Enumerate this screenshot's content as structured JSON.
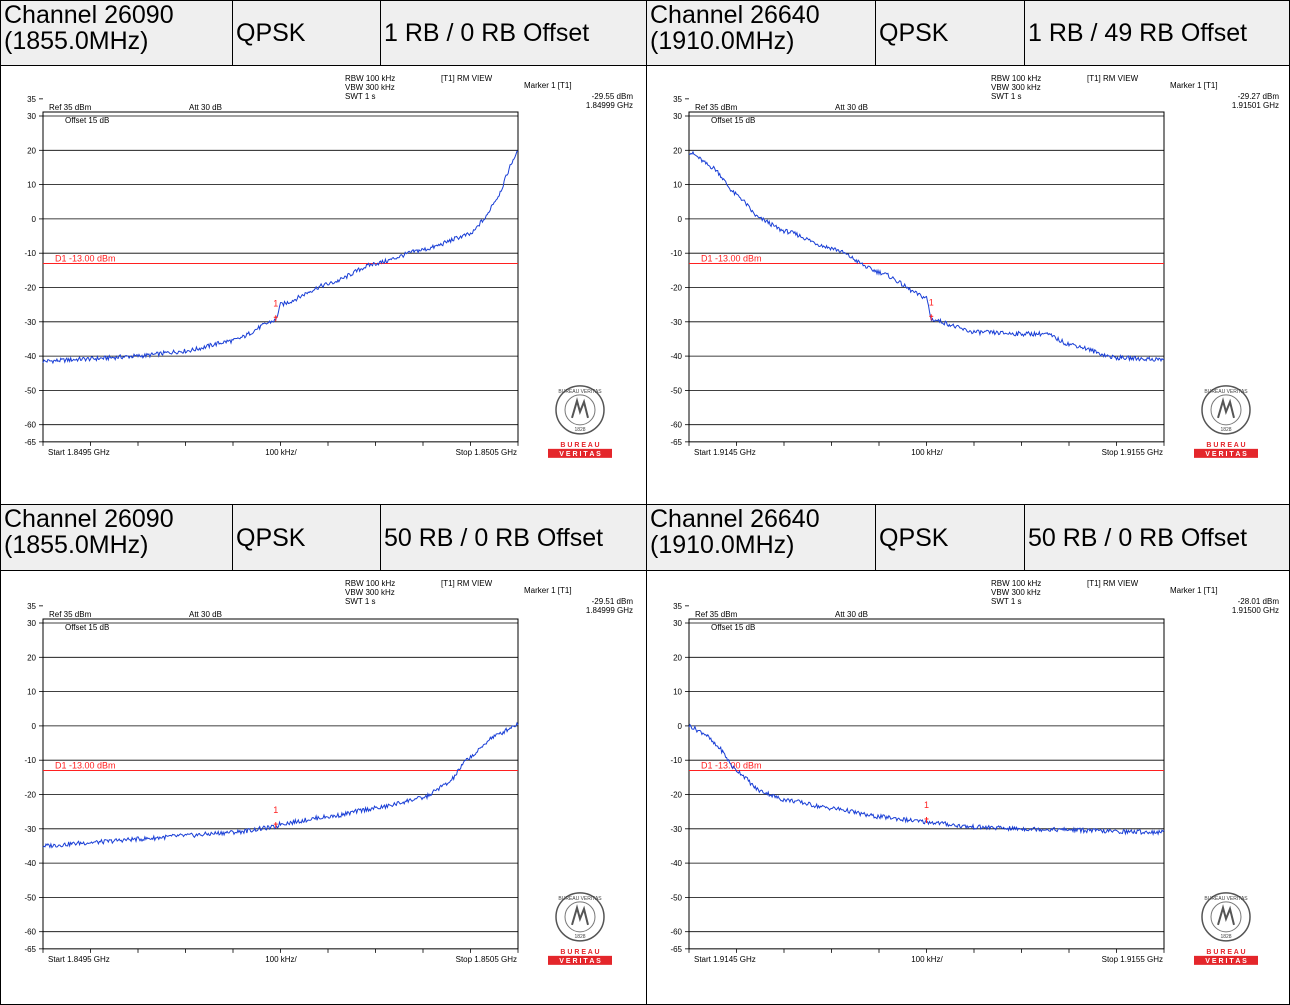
{
  "colors": {
    "trace": "#1a3fd6",
    "limit": "#ff2020",
    "marker": "#ff2020",
    "logo_red": "#e4262b",
    "header_bg": "#efefef"
  },
  "instrument": {
    "rbw": "RBW 100 kHz",
    "vbw": "VBW 300 kHz",
    "swt": "SWT 1 s",
    "view": "[T1] RM VIEW",
    "ref": "Ref 35 dBm",
    "att": "Att 30 dB",
    "offset": "Offset 15 dB",
    "div": "100 kHz/",
    "limit_label": "D1 -13.00 dBm",
    "marker_title": "Marker 1 [T1]",
    "marker_id": "1",
    "logo_top": "BUREAU VERITAS",
    "logo_year": "1828",
    "logo_bottom1": "B U R E A U",
    "logo_bottom2": "V E R I T A S"
  },
  "rows": [
    {
      "headers": [
        {
          "channel_line1": "Channel 26090",
          "channel_line2": "(1855.0MHz)",
          "modulation": "QPSK",
          "rb": "1 RB / 0 RB Offset"
        },
        {
          "channel_line1": "Channel 26640",
          "channel_line2": "(1910.0MHz)",
          "modulation": "QPSK",
          "rb": "1 RB / 49 RB Offset"
        }
      ]
    },
    {
      "headers": [
        {
          "channel_line1": "Channel 26090",
          "channel_line2": "(1855.0MHz)",
          "modulation": "QPSK",
          "rb": "50 RB / 0 RB Offset"
        },
        {
          "channel_line1": "Channel 26640",
          "channel_line2": "(1910.0MHz)",
          "modulation": "QPSK",
          "rb": "50 RB / 0 RB Offset"
        }
      ]
    }
  ],
  "chart_data": [
    {
      "type": "line",
      "title": "",
      "xlabel": "",
      "ylabel": "",
      "xlim": [
        1.8495,
        1.8505
      ],
      "ylim": [
        -65,
        35
      ],
      "grid": true,
      "start_label": "Start 1.8495 GHz",
      "stop_label": "Stop 1.8505 GHz",
      "yticks": [
        35,
        30,
        20,
        10,
        0,
        -10,
        -20,
        -30,
        -40,
        -50,
        -60,
        -65
      ],
      "limit_line_dbm": -13.0,
      "marker": {
        "level": "-29.55 dBm",
        "freq": "1.84999 GHz",
        "x_ghz": 1.84999,
        "y_dbm": -29.55
      },
      "series": [
        {
          "x": [
            1.8495,
            1.8496,
            1.8497,
            1.8498,
            1.8499,
            1.84999,
            1.85,
            1.8501,
            1.8502,
            1.8503,
            1.8504,
            1.85043,
            1.85045,
            1.8505
          ],
          "values": [
            -41.5,
            -40.8,
            -40.0,
            -38.5,
            -35.5,
            -29.55,
            -25.0,
            -19.0,
            -13.0,
            -9.0,
            -4.5,
            0.0,
            5.0,
            19.5
          ]
        }
      ]
    },
    {
      "type": "line",
      "title": "",
      "xlabel": "",
      "ylabel": "",
      "xlim": [
        1.9145,
        1.9155
      ],
      "ylim": [
        -65,
        35
      ],
      "grid": true,
      "start_label": "Start 1.9145 GHz",
      "stop_label": "Stop 1.9155 GHz",
      "yticks": [
        35,
        30,
        20,
        10,
        0,
        -10,
        -20,
        -30,
        -40,
        -50,
        -60,
        -65
      ],
      "limit_line_dbm": -13.0,
      "marker": {
        "level": "-29.27 dBm",
        "freq": "1.91501 GHz",
        "x_ghz": 1.91501,
        "y_dbm": -29.27
      },
      "series": [
        {
          "x": [
            1.9145,
            1.91455,
            1.9146,
            1.91465,
            1.9147,
            1.9148,
            1.9149,
            1.915,
            1.91501,
            1.9151,
            1.9152,
            1.91525,
            1.9153,
            1.9154,
            1.9155
          ],
          "values": [
            19.5,
            15.0,
            7.0,
            0.0,
            -3.5,
            -8.5,
            -15.5,
            -23.0,
            -29.27,
            -33.0,
            -33.5,
            -33.5,
            -36.5,
            -40.5,
            -41.0
          ]
        }
      ]
    },
    {
      "type": "line",
      "title": "",
      "xlabel": "",
      "ylabel": "",
      "xlim": [
        1.8495,
        1.8505
      ],
      "ylim": [
        -65,
        35
      ],
      "grid": true,
      "start_label": "Start 1.8495 GHz",
      "stop_label": "Stop 1.8505 GHz",
      "yticks": [
        35,
        30,
        20,
        10,
        0,
        -10,
        -20,
        -30,
        -40,
        -50,
        -60,
        -65
      ],
      "limit_line_dbm": -13.0,
      "marker": {
        "level": "-29.51 dBm",
        "freq": "1.84999 GHz",
        "x_ghz": 1.84999,
        "y_dbm": -29.51
      },
      "series": [
        {
          "x": [
            1.8495,
            1.8496,
            1.8497,
            1.8498,
            1.8499,
            1.84999,
            1.85,
            1.8501,
            1.8502,
            1.8503,
            1.85035,
            1.8504,
            1.85045,
            1.8505
          ],
          "values": [
            -35.0,
            -34.0,
            -33.0,
            -32.0,
            -31.0,
            -29.51,
            -28.5,
            -26.5,
            -24.0,
            -21.0,
            -17.0,
            -9.0,
            -3.0,
            0.5
          ]
        }
      ]
    },
    {
      "type": "line",
      "title": "",
      "xlabel": "",
      "ylabel": "",
      "xlim": [
        1.9145,
        1.9155
      ],
      "ylim": [
        -65,
        35
      ],
      "grid": true,
      "start_label": "Start 1.9145 GHz",
      "stop_label": "Stop 1.9155 GHz",
      "yticks": [
        35,
        30,
        20,
        10,
        0,
        -10,
        -20,
        -30,
        -40,
        -50,
        -60,
        -65
      ],
      "limit_line_dbm": -13.0,
      "marker": {
        "level": "-28.01 dBm",
        "freq": "1.91500 GHz",
        "x_ghz": 1.915,
        "y_dbm": -28.01
      },
      "series": [
        {
          "x": [
            1.9145,
            1.91453,
            1.91456,
            1.9146,
            1.91465,
            1.9147,
            1.9148,
            1.9149,
            1.915,
            1.9151,
            1.9152,
            1.9153,
            1.9154,
            1.9155
          ],
          "values": [
            0.0,
            -2.0,
            -6.0,
            -13.0,
            -19.0,
            -21.5,
            -24.0,
            -26.5,
            -28.01,
            -29.5,
            -30.0,
            -30.3,
            -30.8,
            -31.0
          ]
        }
      ]
    }
  ]
}
